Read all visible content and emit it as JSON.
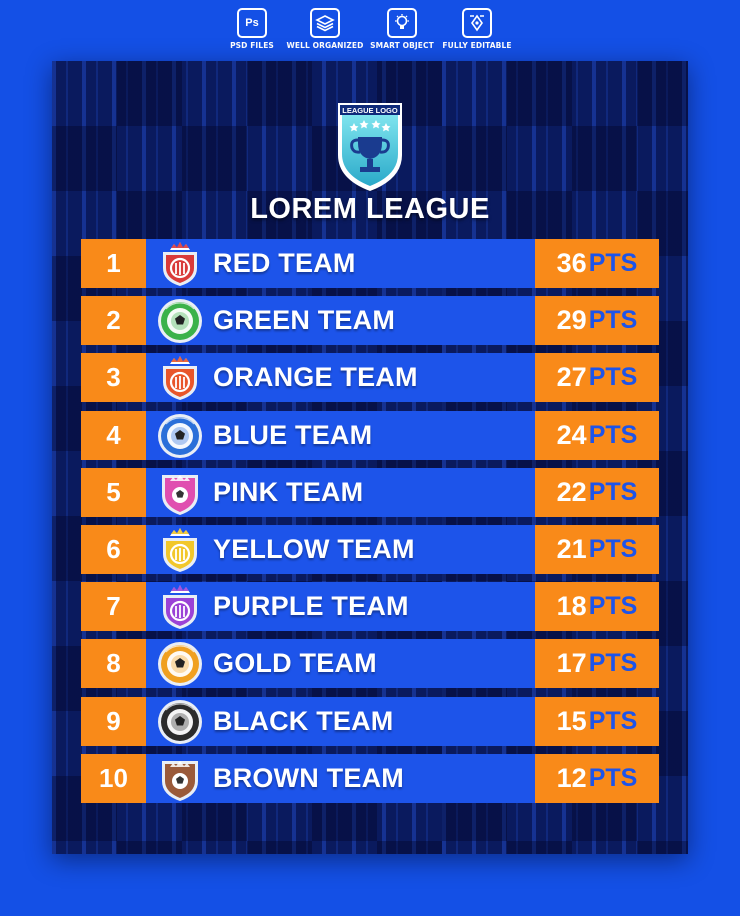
{
  "features": [
    {
      "icon": "photoshop-icon",
      "label": "PSD FILES",
      "glyph": "Ps"
    },
    {
      "icon": "layers-icon",
      "label": "WELL ORGANIZED"
    },
    {
      "icon": "lightbulb-icon",
      "label": "SMART OBJECT"
    },
    {
      "icon": "edit-pen-icon",
      "label": "FULLY EDITABLE"
    }
  ],
  "league": {
    "logo_text": "LEAGUE LOGO",
    "title": "LOREM LEAGUE"
  },
  "pts_unit": "PTS",
  "colors": {
    "background": "#1450e6",
    "poster": "#0a1a5e",
    "orange": "#f98a19",
    "row_blue": "#1d54ea",
    "logo_cyan": "#4fd0e0"
  },
  "standings": [
    {
      "rank": "1",
      "team": "RED TEAM",
      "points": "36",
      "badge_color": "#d93a3a",
      "badge_style": "crown-shield"
    },
    {
      "rank": "2",
      "team": "GREEN TEAM",
      "points": "29",
      "badge_color": "#3bb24a",
      "badge_style": "round-ball"
    },
    {
      "rank": "3",
      "team": "ORANGE TEAM",
      "points": "27",
      "badge_color": "#e8562a",
      "badge_style": "crown-shield"
    },
    {
      "rank": "4",
      "team": "BLUE TEAM",
      "points": "24",
      "badge_color": "#2a6fd9",
      "badge_style": "round-ball"
    },
    {
      "rank": "5",
      "team": "PINK TEAM",
      "points": "22",
      "badge_color": "#e04fb0",
      "badge_style": "shield-ball"
    },
    {
      "rank": "6",
      "team": "YELLOW TEAM",
      "points": "21",
      "badge_color": "#f2c72a",
      "badge_style": "crown-shield"
    },
    {
      "rank": "7",
      "team": "PURPLE TEAM",
      "points": "18",
      "badge_color": "#9b42d6",
      "badge_style": "crown-shield"
    },
    {
      "rank": "8",
      "team": "GOLD TEAM",
      "points": "17",
      "badge_color": "#f0a020",
      "badge_style": "round-ball"
    },
    {
      "rank": "9",
      "team": "BLACK TEAM",
      "points": "15",
      "badge_color": "#2b2b2b",
      "badge_style": "round-ball"
    },
    {
      "rank": "10",
      "team": "BROWN TEAM",
      "points": "12",
      "badge_color": "#9a5a3a",
      "badge_style": "shield-ball"
    }
  ]
}
